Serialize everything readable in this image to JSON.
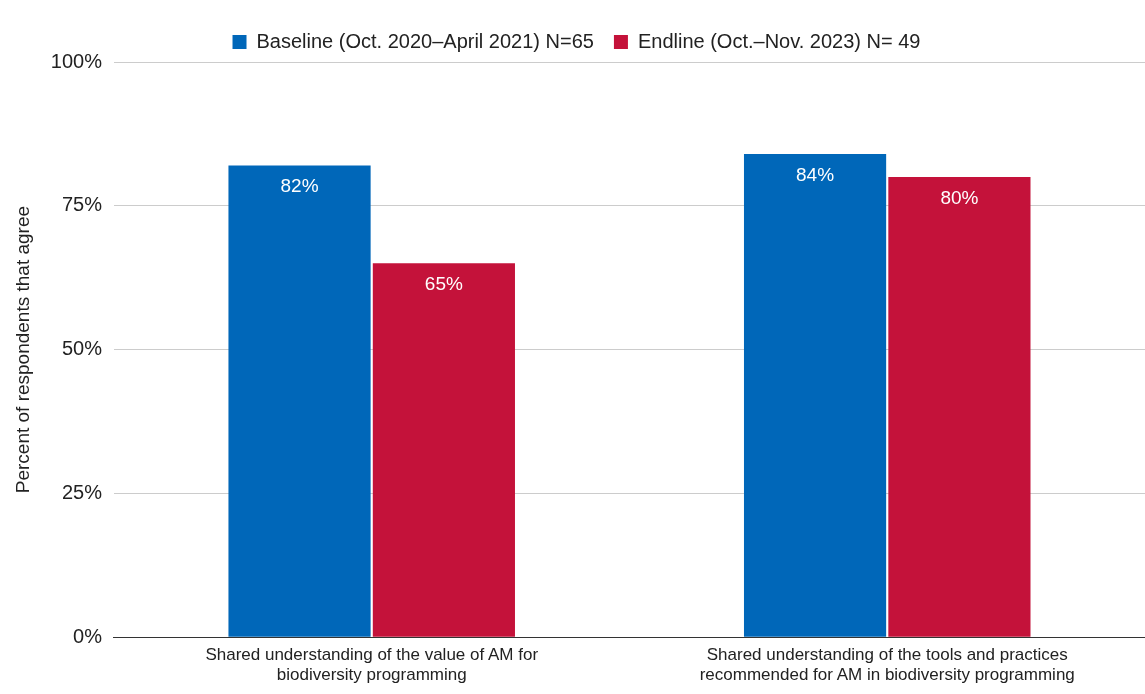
{
  "chart_data": {
    "type": "bar",
    "ylabel": "Percent of respondents that agree",
    "categories": [
      "Shared understanding of the value of AM for biodiversity programming",
      "Shared understanding of the tools and practices recommended for AM in biodiversity programming"
    ],
    "series": [
      {
        "name": "Baseline (Oct. 2020–April 2021) N=65",
        "color": "#0067b9",
        "values": [
          82,
          84
        ],
        "value_labels": [
          "82%",
          "84%"
        ]
      },
      {
        "name": "Endline (Oct.–Nov. 2023) N= 49",
        "color": "#c4123a",
        "values": [
          65,
          80
        ],
        "value_labels": [
          "65%",
          "80%"
        ]
      }
    ],
    "ylim": [
      0,
      100
    ],
    "yticks": [
      {
        "value": 0,
        "label": "0%"
      },
      {
        "value": 25,
        "label": "25%"
      },
      {
        "value": 50,
        "label": "50%"
      },
      {
        "value": 75,
        "label": "75%"
      },
      {
        "value": 100,
        "label": "100%"
      }
    ],
    "grid": "y",
    "legend": "top"
  }
}
